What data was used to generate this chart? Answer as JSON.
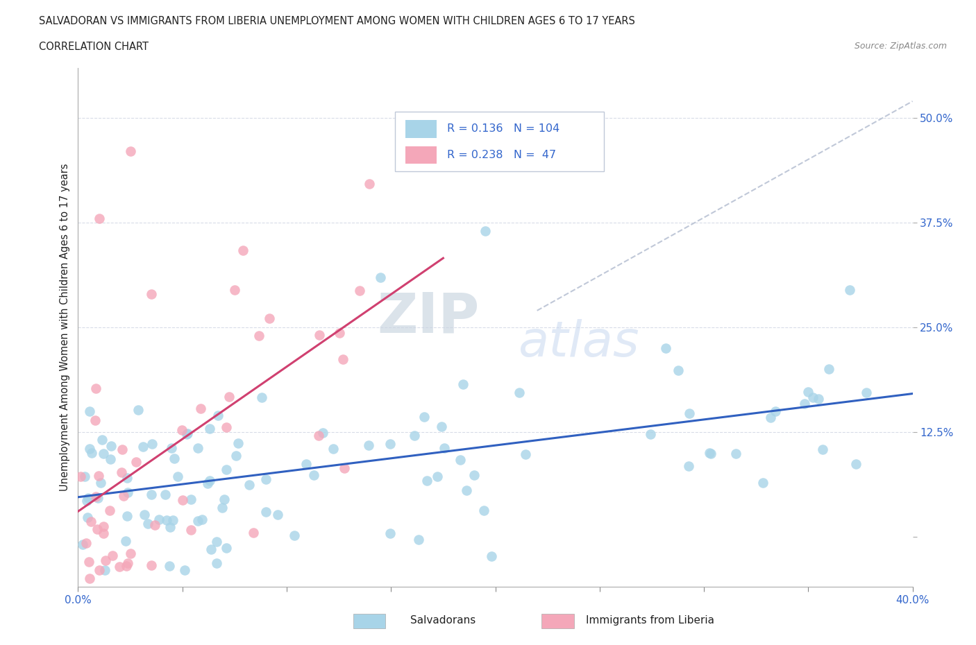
{
  "title_line1": "SALVADORAN VS IMMIGRANTS FROM LIBERIA UNEMPLOYMENT AMONG WOMEN WITH CHILDREN AGES 6 TO 17 YEARS",
  "title_line2": "CORRELATION CHART",
  "source": "Source: ZipAtlas.com",
  "ylabel": "Unemployment Among Women with Children Ages 6 to 17 years",
  "xlim": [
    0.0,
    0.4
  ],
  "ylim": [
    -0.06,
    0.56
  ],
  "r_salvadoran": 0.136,
  "n_salvadoran": 104,
  "r_liberia": 0.238,
  "n_liberia": 47,
  "color_salvadoran": "#a8d4e8",
  "color_liberia": "#f4a7b9",
  "trendline_salvadoran": "#3060c0",
  "trendline_liberia": "#d04070",
  "trendline_dashed_color": "#c0c8d8",
  "watermark_zip": "ZIP",
  "watermark_atlas": "atlas"
}
